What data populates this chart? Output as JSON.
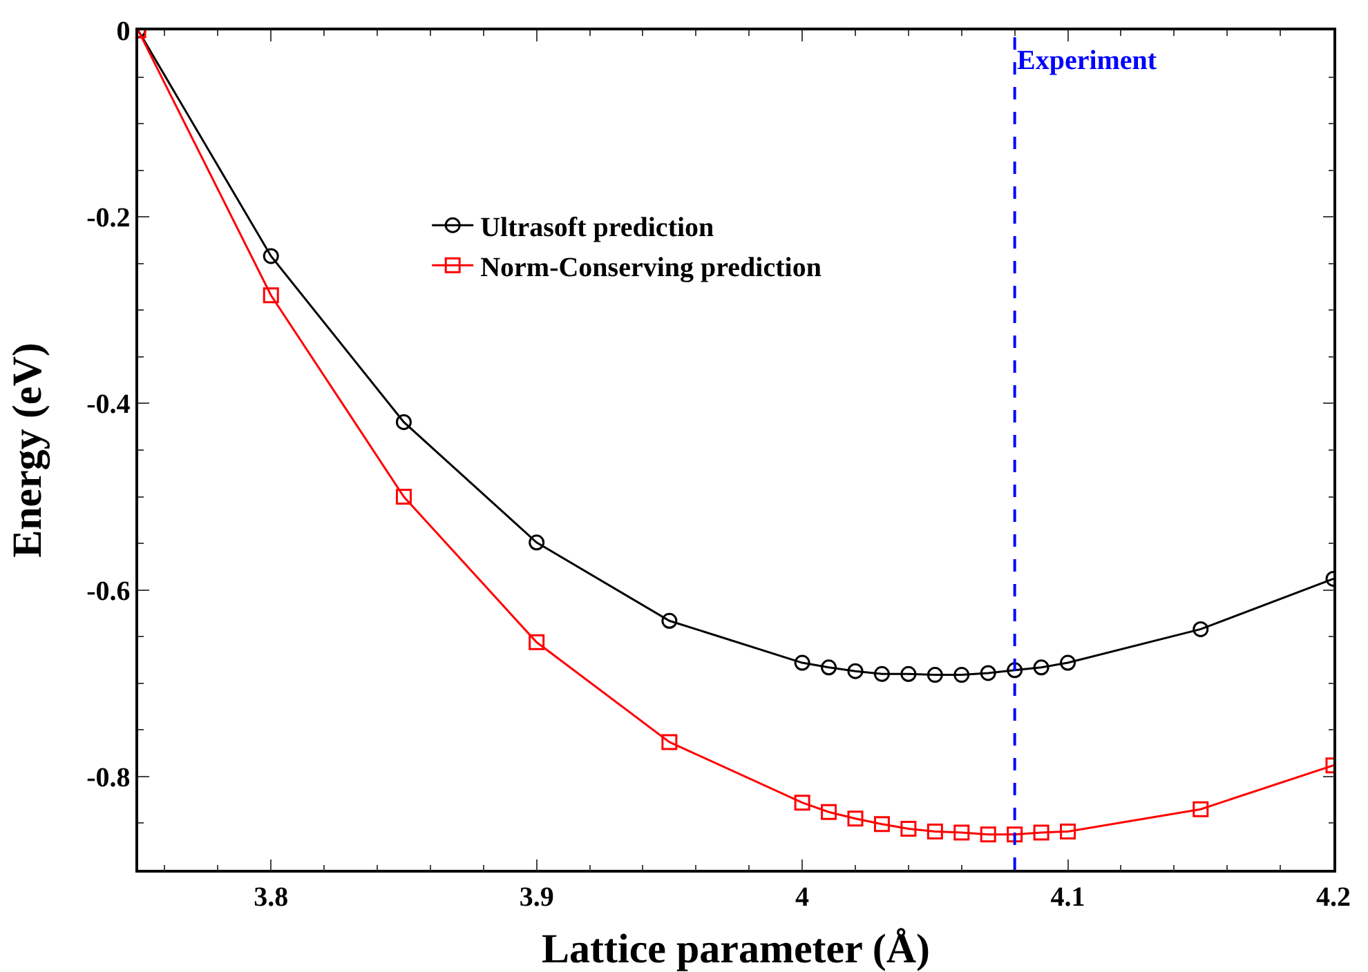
{
  "chart_data": {
    "type": "line",
    "xlabel": "Lattice parameter (Å)",
    "ylabel": "Energy (eV)",
    "xlim": [
      3.75,
      4.2
    ],
    "xticks": [
      3.8,
      3.9,
      4,
      4.1,
      4.2
    ],
    "ylim": [
      -0.9,
      0
    ],
    "yticks": [
      0,
      -0.2,
      -0.4,
      -0.6,
      -0.8
    ],
    "grid": false,
    "legend": "top left",
    "line_style": "solid",
    "x": [
      3.75,
      3.8,
      3.85,
      3.9,
      3.95,
      4.0,
      4.01,
      4.02,
      4.03,
      4.04,
      4.05,
      4.06,
      4.07,
      4.08,
      4.09,
      4.1,
      4.15,
      4.2
    ],
    "series": [
      {
        "name": "Ultrasoft prediction",
        "color": "#000000",
        "marker": "circle",
        "values": [
          0,
          -0.242,
          -0.42,
          -0.549,
          -0.633,
          -0.678,
          -0.683,
          -0.687,
          -0.69,
          -0.69,
          -0.691,
          -0.691,
          -0.689,
          -0.686,
          -0.683,
          -0.678,
          -0.642,
          -0.588
        ]
      },
      {
        "name": "Norm-Conserving prediction",
        "color": "#ff0000",
        "marker": "square",
        "values": [
          0,
          -0.284,
          -0.5,
          -0.656,
          -0.763,
          -0.828,
          -0.838,
          -0.845,
          -0.851,
          -0.856,
          -0.859,
          -0.86,
          -0.862,
          -0.862,
          -0.86,
          -0.859,
          -0.835,
          -0.788
        ]
      }
    ],
    "ref_lines": [
      {
        "axis": "x",
        "value": 4.08,
        "label": "Experiment",
        "color": "#0000ff",
        "line_style": "dashed"
      }
    ]
  }
}
